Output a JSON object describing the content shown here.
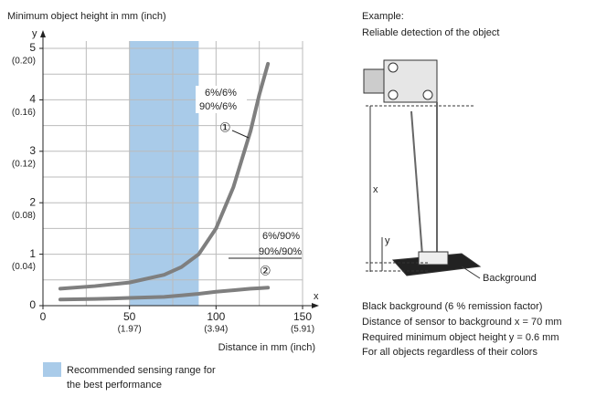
{
  "chart_data": {
    "type": "line",
    "title": "Minimum object height in mm (inch)",
    "y_axis_symbol": "y",
    "x_axis_symbol": "x",
    "x_label": "Distance in mm (inch)",
    "x": [
      10,
      30,
      50,
      70,
      80,
      90,
      100,
      110,
      120,
      125,
      130
    ],
    "series": [
      {
        "name": "①",
        "labels": [
          "6%/6%",
          "90%/6%"
        ],
        "color": "#7f7f7f",
        "values": [
          0.33,
          0.38,
          0.45,
          0.6,
          0.75,
          1.0,
          1.5,
          2.3,
          3.4,
          4.1,
          4.7
        ]
      },
      {
        "name": "②",
        "labels": [
          "6%/90%",
          "90%/90%"
        ],
        "color": "#7f7f7f",
        "values": [
          0.12,
          0.13,
          0.15,
          0.17,
          0.2,
          0.23,
          0.27,
          0.3,
          0.33,
          0.34,
          0.35
        ]
      }
    ],
    "xlim": [
      0,
      150
    ],
    "xticks": [
      {
        "value": 0,
        "label": "0"
      },
      {
        "value": 50,
        "label": "50",
        "sub_label": "(1.97)"
      },
      {
        "value": 100,
        "label": "100",
        "sub_label": "(3.94)"
      },
      {
        "value": 150,
        "label": "150",
        "sub_label": "(5.91)"
      }
    ],
    "xminor": [
      25,
      75,
      125
    ],
    "ylim": [
      0,
      5
    ],
    "yticks": [
      {
        "value": 0,
        "label": "0"
      },
      {
        "value": 1,
        "label": "1",
        "sub_label": "(0.04)"
      },
      {
        "value": 2,
        "label": "2",
        "sub_label": "(0.08)"
      },
      {
        "value": 3,
        "label": "3",
        "sub_label": "(0.12)"
      },
      {
        "value": 4,
        "label": "4",
        "sub_label": "(0.16)"
      },
      {
        "value": 5,
        "label": "5",
        "sub_label": "(0.20)"
      }
    ],
    "yminor": [
      0.5,
      1.5,
      2.5,
      3.5,
      4.5
    ],
    "grid": true,
    "range": {
      "from": 50,
      "to": 90,
      "color": "#a9cbe9",
      "label_lines": [
        "Recommended sensing range for",
        "the best performance"
      ]
    }
  },
  "example": {
    "heading": "Example:",
    "subheading": "Reliable detection of the object",
    "x_symbol": "x",
    "y_symbol": "y",
    "background_label": "Background",
    "notes": [
      "Black background (6 % remission factor)",
      "Distance of sensor to background x = 70 mm",
      "Required minimum object height y = 0.6 mm",
      "For all objects regardless of their colors"
    ]
  }
}
